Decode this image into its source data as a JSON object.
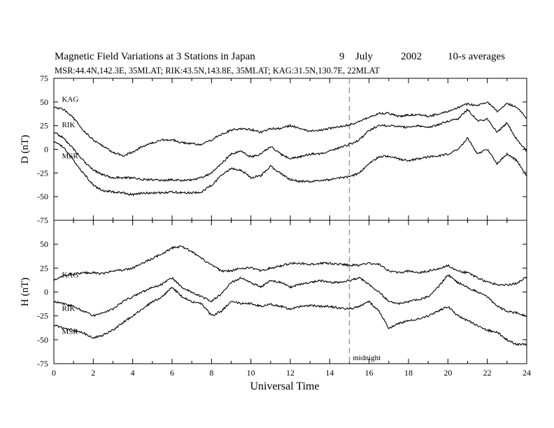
{
  "header": {
    "title": "Magnetic Field Variations at 3 Stations in Japan",
    "day": "9",
    "month": "July",
    "year": "2002",
    "averaging": "10-s averages",
    "stations_line": "MSR:44.4N,142.3E, 35MLAT;  RIK:43.5N,143.8E, 35MLAT;  KAG:31.5N,130.7E, 22MLAT"
  },
  "chart_data": [
    {
      "type": "line",
      "panel": "D",
      "ylabel": "D (nT)",
      "xlim": [
        0,
        24
      ],
      "ylim": [
        -75,
        75
      ],
      "yticks": [
        -75,
        -50,
        -25,
        0,
        25,
        50,
        75
      ],
      "grid": false,
      "marker": {
        "x": 15,
        "label": ""
      },
      "series": [
        {
          "name": "KAG",
          "label_at": [
            0.3,
            48
          ],
          "x": [
            0,
            0.5,
            1,
            1.5,
            2,
            2.5,
            3,
            3.5,
            4,
            4.5,
            5,
            5.5,
            6,
            6.5,
            7,
            7.5,
            8,
            8.5,
            9,
            9.5,
            10,
            10.5,
            11,
            11.5,
            12,
            12.5,
            13,
            13.5,
            14,
            14.5,
            15,
            15.5,
            16,
            16.5,
            17,
            17.5,
            18,
            18.5,
            19,
            19.5,
            20,
            20.5,
            21,
            21.5,
            22,
            22.5,
            23,
            23.5,
            24
          ],
          "y": [
            45,
            42,
            33,
            20,
            10,
            3,
            -3,
            -7,
            -3,
            3,
            7,
            10,
            10,
            7,
            6,
            5,
            10,
            16,
            20,
            22,
            21,
            18,
            22,
            22,
            25,
            22,
            19,
            20,
            22,
            24,
            26,
            29,
            34,
            38,
            38,
            35,
            36,
            37,
            35,
            37,
            40,
            44,
            48,
            46,
            50,
            40,
            48,
            45,
            33
          ]
        },
        {
          "name": "RIK",
          "label_at": [
            0.3,
            21
          ],
          "x": [
            0,
            0.5,
            1,
            1.5,
            2,
            2.5,
            3,
            3.5,
            4,
            4.5,
            5,
            5.5,
            6,
            6.5,
            7,
            7.5,
            8,
            8.5,
            9,
            9.5,
            10,
            10.5,
            11,
            11.5,
            12,
            12.5,
            13,
            13.5,
            14,
            14.5,
            15,
            15.5,
            16,
            16.5,
            17,
            17.5,
            18,
            18.5,
            19,
            19.5,
            20,
            20.5,
            21,
            21.5,
            22,
            22.5,
            23,
            23.5,
            24
          ],
          "y": [
            18,
            12,
            0,
            -12,
            -22,
            -27,
            -30,
            -30,
            -30,
            -32,
            -32,
            -33,
            -32,
            -33,
            -32,
            -30,
            -25,
            -15,
            -5,
            -2,
            -8,
            -5,
            3,
            -5,
            -10,
            -8,
            -5,
            -5,
            -2,
            2,
            5,
            10,
            20,
            25,
            25,
            24,
            23,
            25,
            23,
            26,
            30,
            32,
            42,
            30,
            32,
            18,
            28,
            10,
            -2
          ]
        },
        {
          "name": "MSR",
          "label_at": [
            0.3,
            -12
          ],
          "x": [
            0,
            0.5,
            1,
            1.5,
            2,
            2.5,
            3,
            3.5,
            4,
            4.5,
            5,
            5.5,
            6,
            6.5,
            7,
            7.5,
            8,
            8.5,
            9,
            9.5,
            10,
            10.5,
            11,
            11.5,
            12,
            12.5,
            13,
            13.5,
            14,
            14.5,
            15,
            15.5,
            16,
            16.5,
            17,
            17.5,
            18,
            18.5,
            19,
            19.5,
            20,
            20.5,
            21,
            21.5,
            22,
            22.5,
            23,
            23.5,
            24
          ],
          "y": [
            8,
            2,
            -12,
            -25,
            -38,
            -44,
            -45,
            -46,
            -48,
            -46,
            -46,
            -46,
            -45,
            -46,
            -46,
            -45,
            -38,
            -28,
            -20,
            -22,
            -30,
            -28,
            -18,
            -25,
            -32,
            -34,
            -34,
            -33,
            -32,
            -30,
            -29,
            -25,
            -15,
            -8,
            -7,
            -10,
            -12,
            -10,
            -8,
            -7,
            -5,
            0,
            12,
            -5,
            0,
            -15,
            -5,
            -12,
            -28
          ]
        }
      ]
    },
    {
      "type": "line",
      "panel": "H",
      "ylabel": "H (nT)",
      "xlabel": "Universal Time",
      "xlim": [
        0,
        24
      ],
      "ylim": [
        -75,
        75
      ],
      "xticks": [
        0,
        2,
        4,
        6,
        8,
        10,
        12,
        14,
        16,
        18,
        20,
        22,
        24
      ],
      "yticks": [
        -75,
        -50,
        -25,
        0,
        25,
        50,
        75
      ],
      "grid": false,
      "marker": {
        "x": 15,
        "label": "midnight"
      },
      "series": [
        {
          "name": "KAG",
          "label_at": [
            0.3,
            13
          ],
          "x": [
            0,
            0.5,
            1,
            1.5,
            2,
            2.5,
            3,
            3.5,
            4,
            4.5,
            5,
            5.5,
            6,
            6.5,
            7,
            7.5,
            8,
            8.5,
            9,
            9.5,
            10,
            10.5,
            11,
            11.5,
            12,
            12.5,
            13,
            13.5,
            14,
            14.5,
            15,
            15.5,
            16,
            16.5,
            17,
            17.5,
            18,
            18.5,
            19,
            19.5,
            20,
            20.5,
            21,
            21.5,
            22,
            22.5,
            23,
            23.5,
            24
          ],
          "y": [
            12,
            17,
            19,
            20,
            20,
            19,
            22,
            23,
            25,
            30,
            35,
            40,
            46,
            48,
            42,
            35,
            28,
            22,
            22,
            25,
            25,
            22,
            25,
            27,
            30,
            30,
            29,
            30,
            30,
            29,
            28,
            28,
            30,
            29,
            22,
            20,
            22,
            20,
            22,
            24,
            28,
            22,
            20,
            15,
            10,
            8,
            7,
            9,
            16
          ]
        },
        {
          "name": "RIK",
          "label_at": [
            0.3,
            -22
          ],
          "x": [
            0,
            0.5,
            1,
            1.5,
            2,
            2.5,
            3,
            3.5,
            4,
            4.5,
            5,
            5.5,
            6,
            6.5,
            7,
            7.5,
            8,
            8.5,
            9,
            9.5,
            10,
            10.5,
            11,
            11.5,
            12,
            12.5,
            13,
            13.5,
            14,
            14.5,
            15,
            15.5,
            16,
            16.5,
            17,
            17.5,
            18,
            18.5,
            19,
            19.5,
            20,
            20.5,
            21,
            21.5,
            22,
            22.5,
            23,
            23.5,
            24
          ],
          "y": [
            -10,
            -12,
            -15,
            -20,
            -25,
            -22,
            -18,
            -10,
            -5,
            0,
            5,
            8,
            15,
            5,
            0,
            -5,
            -10,
            -2,
            10,
            15,
            10,
            5,
            12,
            10,
            5,
            8,
            10,
            12,
            10,
            10,
            12,
            15,
            8,
            0,
            -10,
            -12,
            -10,
            -8,
            -5,
            5,
            18,
            10,
            5,
            0,
            -5,
            -15,
            -20,
            -22,
            -25
          ]
        },
        {
          "name": "MSR",
          "label_at": [
            0.3,
            -46
          ],
          "x": [
            0,
            0.5,
            1,
            1.5,
            2,
            2.5,
            3,
            3.5,
            4,
            4.5,
            5,
            5.5,
            6,
            6.5,
            7,
            7.5,
            8,
            8.5,
            9,
            9.5,
            10,
            10.5,
            11,
            11.5,
            12,
            12.5,
            13,
            13.5,
            14,
            14.5,
            15,
            15.5,
            16,
            16.5,
            17,
            17.5,
            18,
            18.5,
            19,
            19.5,
            20,
            20.5,
            21,
            21.5,
            22,
            22.5,
            23,
            23.5,
            24
          ],
          "y": [
            -35,
            -38,
            -40,
            -43,
            -48,
            -45,
            -40,
            -32,
            -25,
            -18,
            -10,
            -5,
            5,
            -5,
            -10,
            -12,
            -25,
            -20,
            -10,
            -12,
            -12,
            -15,
            -13,
            -15,
            -18,
            -15,
            -14,
            -15,
            -15,
            -17,
            -18,
            -15,
            -10,
            -20,
            -38,
            -33,
            -30,
            -28,
            -25,
            -20,
            -15,
            -25,
            -30,
            -35,
            -40,
            -42,
            -50,
            -55,
            -55
          ]
        }
      ]
    }
  ]
}
